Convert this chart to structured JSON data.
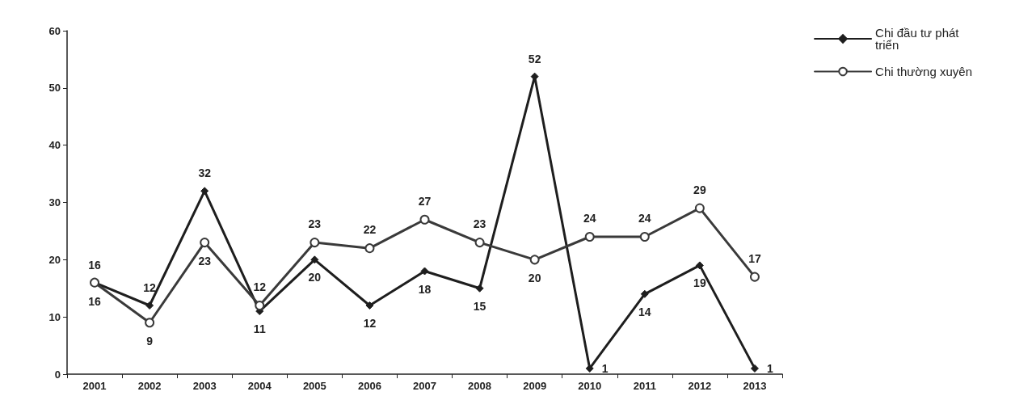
{
  "chart_data": {
    "type": "line",
    "categories": [
      "2001",
      "2002",
      "2003",
      "2004",
      "2005",
      "2006",
      "2007",
      "2008",
      "2009",
      "2010",
      "2011",
      "2012",
      "2013"
    ],
    "series": [
      {
        "name": "Chi đầu tư phát triển",
        "color": "#1e1e1e",
        "marker": "diamond",
        "values": [
          16,
          12,
          32,
          11,
          20,
          12,
          18,
          15,
          52,
          1,
          14,
          19,
          1
        ]
      },
      {
        "name": "Chi thường xuyên",
        "color": "#3a3a3a",
        "marker": "circle",
        "values": [
          16,
          9,
          23,
          12,
          23,
          22,
          27,
          23,
          20,
          24,
          24,
          29,
          17
        ]
      }
    ],
    "ylim": [
      0,
      60
    ],
    "yticks": [
      0,
      10,
      20,
      30,
      40,
      50,
      60
    ],
    "grid": false,
    "legend": "top right",
    "data_labels": true,
    "line_style": "solid"
  }
}
